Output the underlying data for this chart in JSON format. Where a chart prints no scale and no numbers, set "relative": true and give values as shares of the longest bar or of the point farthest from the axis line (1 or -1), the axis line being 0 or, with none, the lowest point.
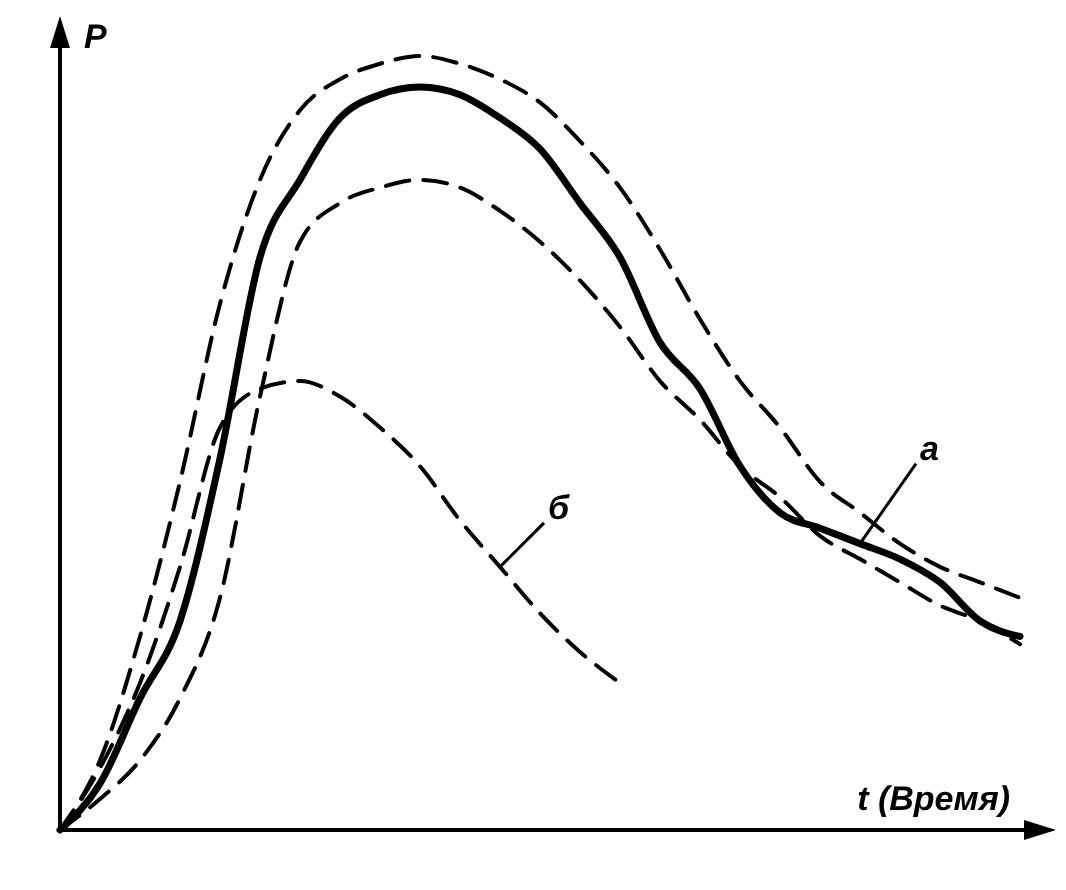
{
  "chart_data": {
    "type": "line",
    "relative": true,
    "xlabel": "t (Время)",
    "ylabel": "P",
    "categories": [
      null,
      null,
      null,
      null,
      null,
      null,
      null,
      null,
      null,
      null,
      null,
      null,
      null,
      null,
      null,
      null,
      null,
      null,
      null,
      null,
      null,
      null,
      null,
      null,
      null
    ],
    "series": [
      {
        "color": "#000000",
        "line_style": "dashed",
        "values": [
          0,
          0.09,
          0.25,
          0.45,
          0.68,
          0.84,
          0.93,
          0.97,
          0.99,
          1,
          0.99,
          0.97,
          0.94,
          0.89,
          0.83,
          0.75,
          0.66,
          0.58,
          0.52,
          0.45,
          0.41,
          0.37,
          0.34,
          0.32,
          0.3
        ]
      },
      {
        "name": "a",
        "color": "#000000",
        "line_style": "solid",
        "values": [
          0,
          0.06,
          0.17,
          0.27,
          0.48,
          0.74,
          0.84,
          0.92,
          0.95,
          0.96,
          0.95,
          0.92,
          0.88,
          0.81,
          0.74,
          0.63,
          0.57,
          0.47,
          0.41,
          0.39,
          0.37,
          0.35,
          0.32,
          0.27,
          0.25
        ]
      },
      {
        "color": "#000000",
        "line_style": "dashed",
        "values": [
          0,
          0.04,
          0.09,
          0.17,
          0.3,
          0.56,
          0.76,
          0.81,
          0.83,
          0.84,
          0.83,
          0.8,
          0.76,
          0.71,
          0.65,
          0.58,
          0.53,
          0.47,
          0.43,
          0.38,
          0.35,
          0.32,
          0.29,
          0.27,
          0.24
        ]
      },
      {
        "name": "б",
        "color": "#000000",
        "line_style": "dashed",
        "values": [
          0,
          0.08,
          0.19,
          0.34,
          0.52,
          0.57,
          0.58,
          0.56,
          0.52,
          0.47,
          0.4,
          0.34,
          0.28,
          0.23,
          0.19,
          null,
          null,
          null,
          null,
          null,
          null,
          null,
          null,
          null,
          null
        ]
      }
    ]
  }
}
